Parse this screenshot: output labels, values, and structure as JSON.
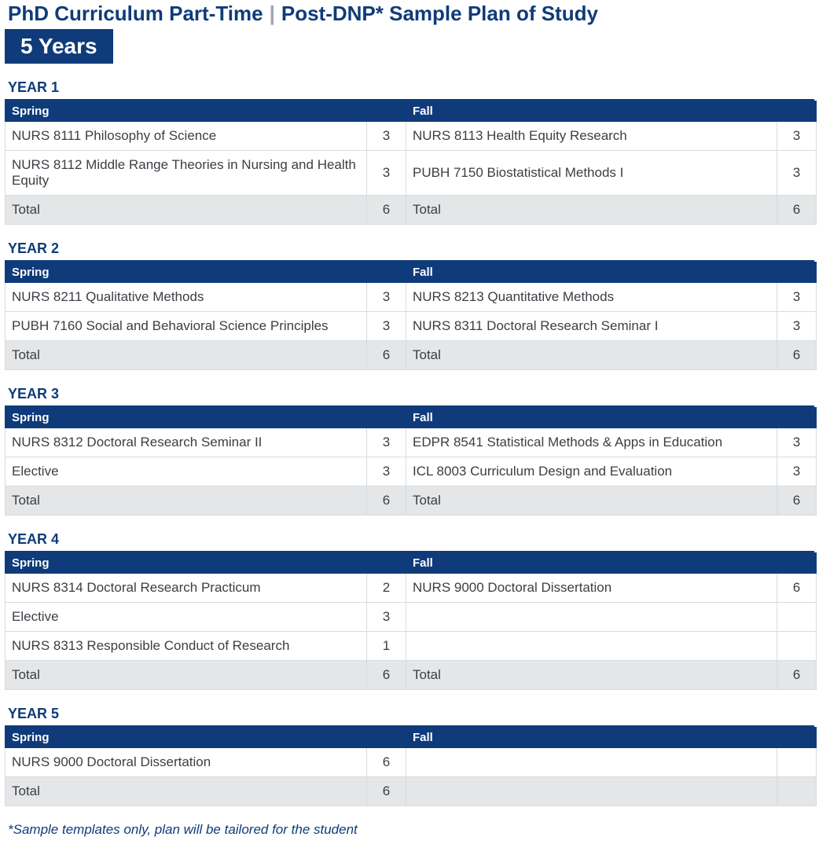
{
  "header": {
    "title_main": "PhD Curriculum Part-Time",
    "separator": "|",
    "title_sub": "Post-DNP* Sample Plan of Study",
    "badge": "5 Years",
    "colors": {
      "brand": "#0f3b7a",
      "sep": "#9aa4b0",
      "text": "#3a3f44",
      "total_bg": "#e4e6e8",
      "border": "#d7dbde"
    }
  },
  "semester_labels": {
    "spring": "Spring",
    "fall": "Fall"
  },
  "total_label": "Total",
  "years": [
    {
      "label": "YEAR 1",
      "spring": {
        "rows": [
          {
            "course": "NURS 8111 Philosophy of Science",
            "credits": "3"
          },
          {
            "course": "NURS 8112 Middle Range Theories in Nursing and Health Equity",
            "credits": "3"
          }
        ],
        "total": "6"
      },
      "fall": {
        "rows": [
          {
            "course": "NURS 8113 Health Equity Research",
            "credits": "3"
          },
          {
            "course": "PUBH 7150 Biostatistical Methods I",
            "credits": "3"
          }
        ],
        "total": "6"
      }
    },
    {
      "label": "YEAR 2",
      "spring": {
        "rows": [
          {
            "course": "NURS 8211 Qualitative Methods",
            "credits": "3"
          },
          {
            "course": "PUBH 7160 Social and Behavioral Science Principles",
            "credits": "3"
          }
        ],
        "total": "6"
      },
      "fall": {
        "rows": [
          {
            "course": "NURS 8213 Quantitative Methods",
            "credits": "3"
          },
          {
            "course": "NURS 8311 Doctoral Research Seminar I",
            "credits": "3"
          }
        ],
        "total": "6"
      }
    },
    {
      "label": "YEAR 3",
      "spring": {
        "rows": [
          {
            "course": "NURS 8312 Doctoral Research Seminar II",
            "credits": "3"
          },
          {
            "course": "Elective",
            "credits": "3"
          }
        ],
        "total": "6"
      },
      "fall": {
        "rows": [
          {
            "course": "EDPR 8541 Statistical Methods & Apps in Education",
            "credits": "3"
          },
          {
            "course": "ICL 8003 Curriculum Design and Evaluation",
            "credits": "3"
          }
        ],
        "total": "6"
      }
    },
    {
      "label": "YEAR 4",
      "spring": {
        "rows": [
          {
            "course": "NURS 8314 Doctoral Research Practicum",
            "credits": "2"
          },
          {
            "course": "Elective",
            "credits": "3"
          },
          {
            "course": "NURS 8313 Responsible Conduct of Research",
            "credits": "1"
          }
        ],
        "total": "6"
      },
      "fall": {
        "rows": [
          {
            "course": "NURS 9000 Doctoral Dissertation",
            "credits": "6"
          },
          {
            "course": "",
            "credits": ""
          },
          {
            "course": "",
            "credits": ""
          }
        ],
        "total": "6"
      }
    },
    {
      "label": "YEAR 5",
      "spring": {
        "rows": [
          {
            "course": "NURS 9000 Doctoral Dissertation",
            "credits": "6"
          }
        ],
        "total": "6"
      },
      "fall": {
        "rows": [
          {
            "course": "",
            "credits": ""
          }
        ],
        "total": ""
      }
    }
  ],
  "footnote": "*Sample templates only, plan will be tailored for the student"
}
